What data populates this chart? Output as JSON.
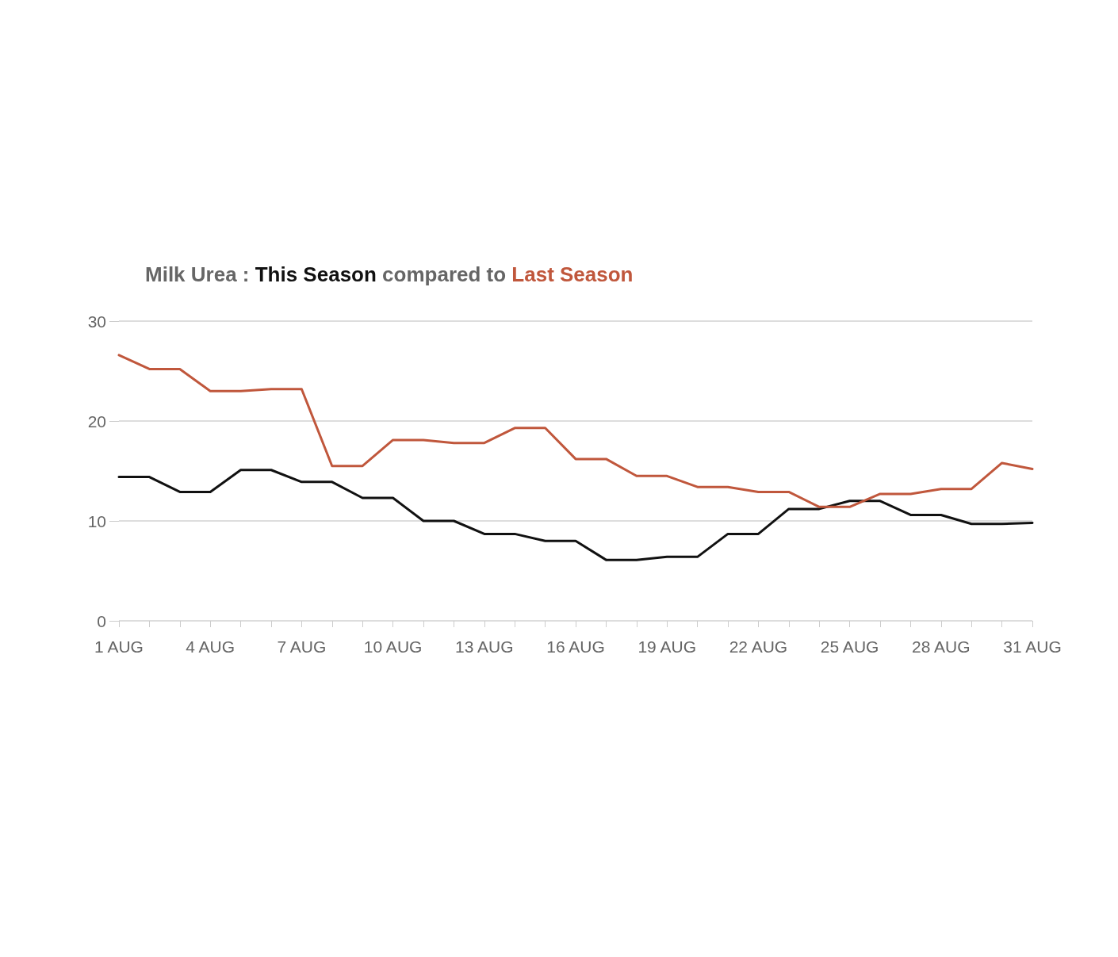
{
  "chart_data": {
    "type": "line",
    "title": "Milk Urea :",
    "annotations": [
      "compared to"
    ],
    "categories": [
      "1 AUG",
      null,
      null,
      "4 AUG",
      null,
      null,
      "7 AUG",
      null,
      null,
      "10 AUG",
      null,
      null,
      "13 AUG",
      null,
      null,
      "16 AUG",
      null,
      null,
      "19 AUG",
      null,
      null,
      "22 AUG",
      null,
      null,
      "25 AUG",
      null,
      null,
      "28 AUG",
      null,
      null,
      "31 AUG"
    ],
    "series": [
      {
        "name": "This Season",
        "color": "#111111",
        "values": [
          14.4,
          14.4,
          12.9,
          12.9,
          15.1,
          15.1,
          13.9,
          13.9,
          12.3,
          12.3,
          10.0,
          10.0,
          8.7,
          8.7,
          8.0,
          8.0,
          6.1,
          6.1,
          6.4,
          6.4,
          8.7,
          8.7,
          11.2,
          11.2,
          12.0,
          12.0,
          10.6,
          10.6,
          9.7,
          9.7,
          9.8
        ]
      },
      {
        "name": "Last Season",
        "color": "#c0573c",
        "values": [
          26.6,
          25.2,
          25.2,
          23.0,
          23.0,
          23.2,
          23.2,
          15.5,
          15.5,
          18.1,
          18.1,
          17.8,
          17.8,
          19.3,
          19.3,
          16.2,
          16.2,
          14.5,
          14.5,
          13.4,
          13.4,
          12.9,
          12.9,
          11.4,
          11.4,
          12.7,
          12.7,
          13.2,
          13.2,
          15.8,
          15.2
        ]
      }
    ],
    "ylim": [
      0,
      30
    ],
    "yticks": [
      0,
      10,
      20,
      30
    ],
    "grid": "y",
    "marker": "none",
    "line_style": "solid"
  }
}
